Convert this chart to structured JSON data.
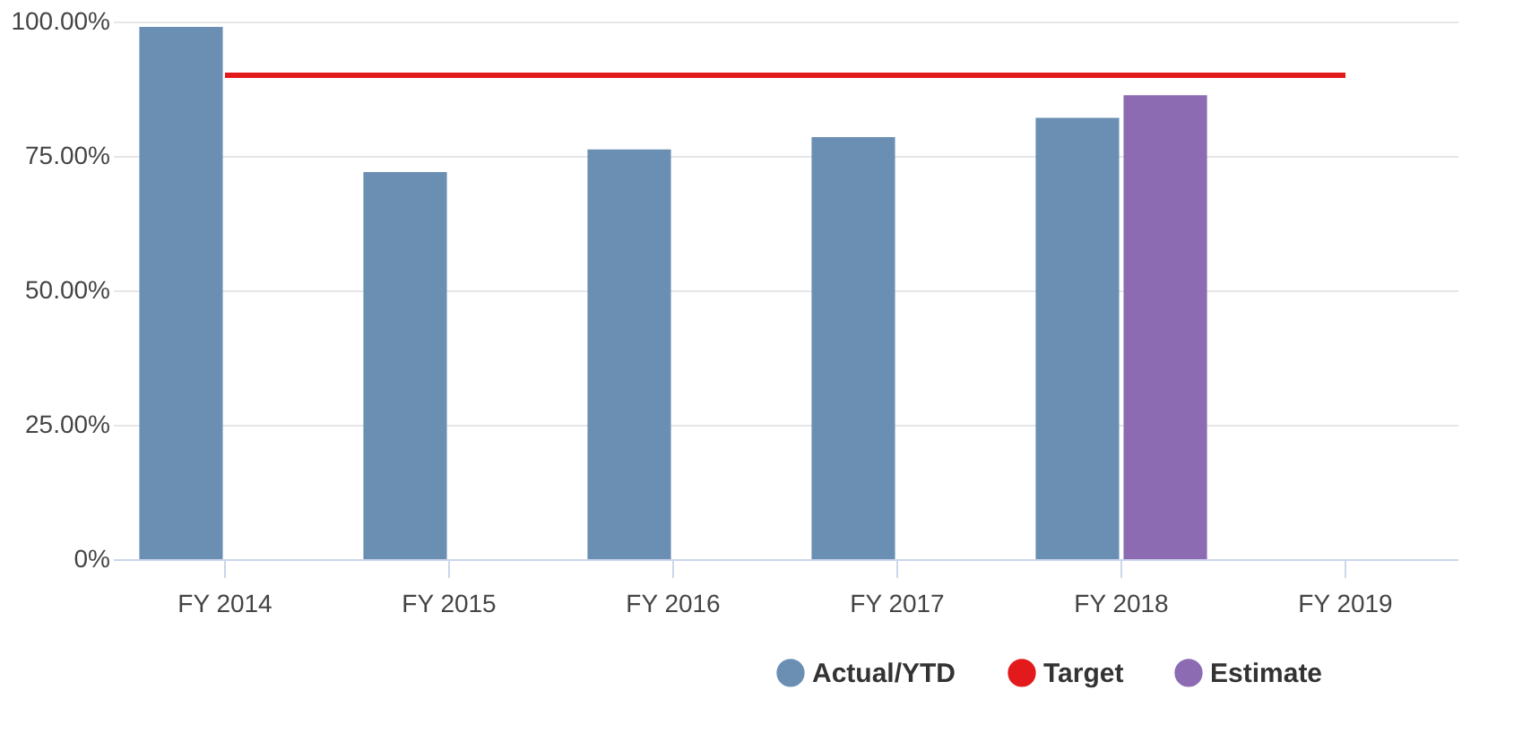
{
  "chart_data": {
    "type": "bar",
    "categories": [
      "FY 2014",
      "FY 2015",
      "FY 2016",
      "FY 2017",
      "FY 2018",
      "FY 2019"
    ],
    "series": [
      {
        "name": "Actual/YTD",
        "color": "#6b8fb3",
        "values": [
          99.0,
          72.0,
          76.2,
          78.5,
          82.1,
          null
        ]
      },
      {
        "name": "Target",
        "type": "line",
        "color": "#e31a1c",
        "values": [
          90,
          90,
          90,
          90,
          90,
          90
        ]
      },
      {
        "name": "Estimate",
        "color": "#8c6bb3",
        "values": [
          null,
          null,
          null,
          null,
          86.3,
          null
        ]
      }
    ],
    "ylim": [
      0,
      100
    ],
    "yticks": [
      {
        "value": 0,
        "label": "0%"
      },
      {
        "value": 25,
        "label": "25.00%"
      },
      {
        "value": 50,
        "label": "50.00%"
      },
      {
        "value": 75,
        "label": "75.00%"
      },
      {
        "value": 100,
        "label": "100.00%"
      }
    ],
    "grid": "y",
    "legend": "bottom right"
  }
}
